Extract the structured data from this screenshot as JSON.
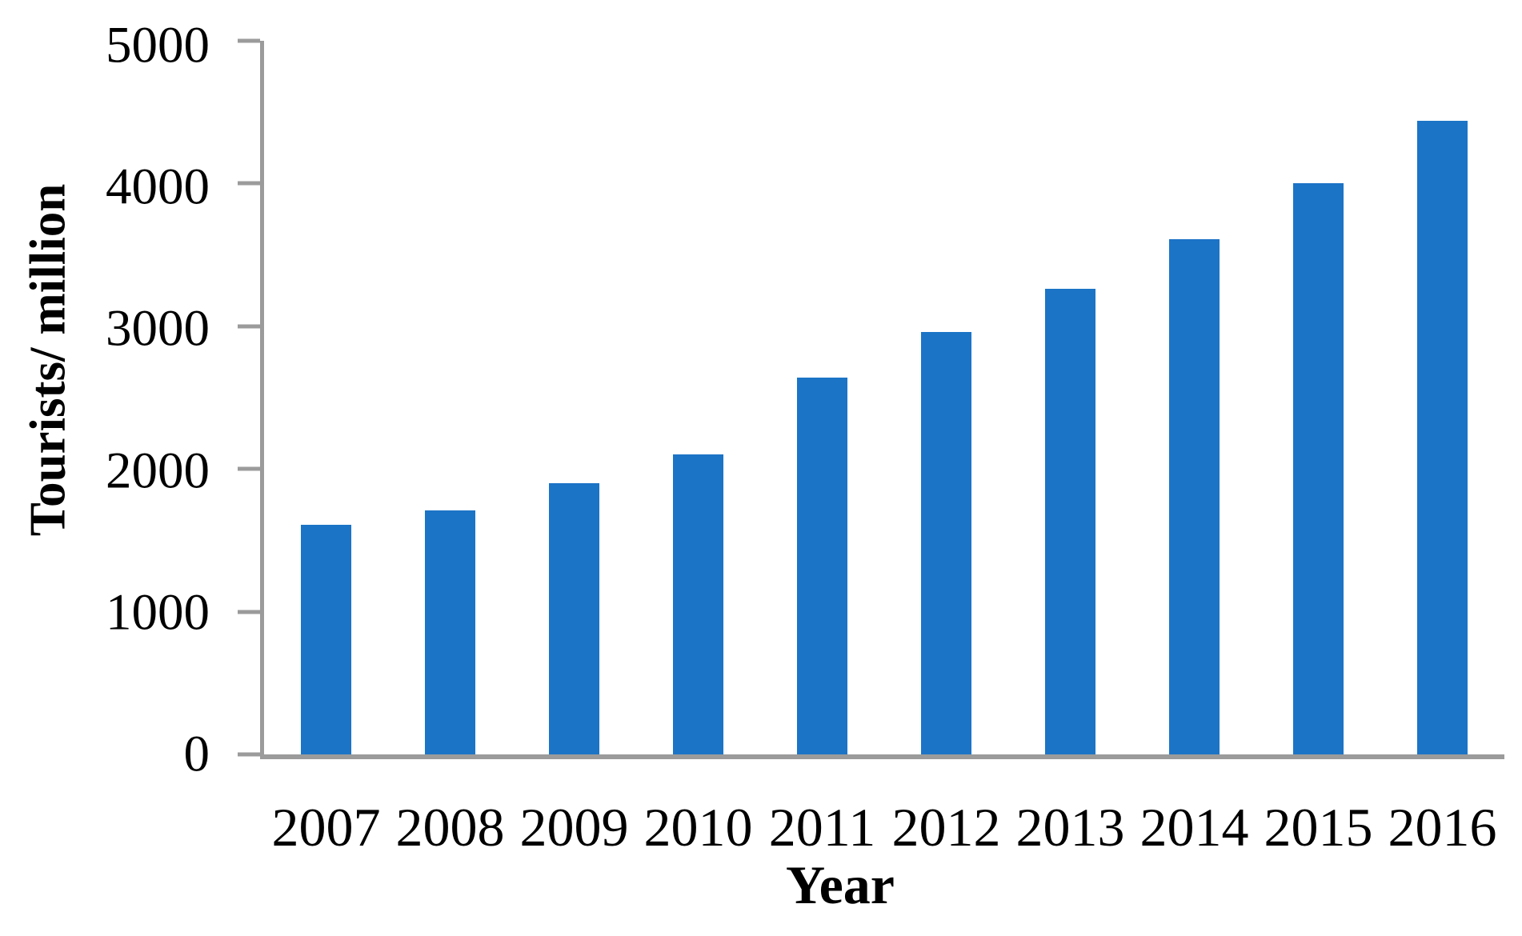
{
  "chart_data": {
    "type": "bar",
    "title": "",
    "xlabel": "Year",
    "ylabel": "Tourists/ million",
    "categories": [
      "2007",
      "2008",
      "2009",
      "2010",
      "2011",
      "2012",
      "2013",
      "2014",
      "2015",
      "2016"
    ],
    "values": [
      1610,
      1712,
      1902,
      2103,
      2641,
      2957,
      3262,
      3611,
      4000,
      4440
    ],
    "ylim": [
      0,
      5000
    ],
    "yticks": [
      0,
      1000,
      2000,
      3000,
      4000,
      5000
    ],
    "grid": false,
    "legend_position": "none",
    "bar_color": "#1b74c6",
    "axis_color": "#9b9b9b",
    "text_color": "#000000"
  }
}
